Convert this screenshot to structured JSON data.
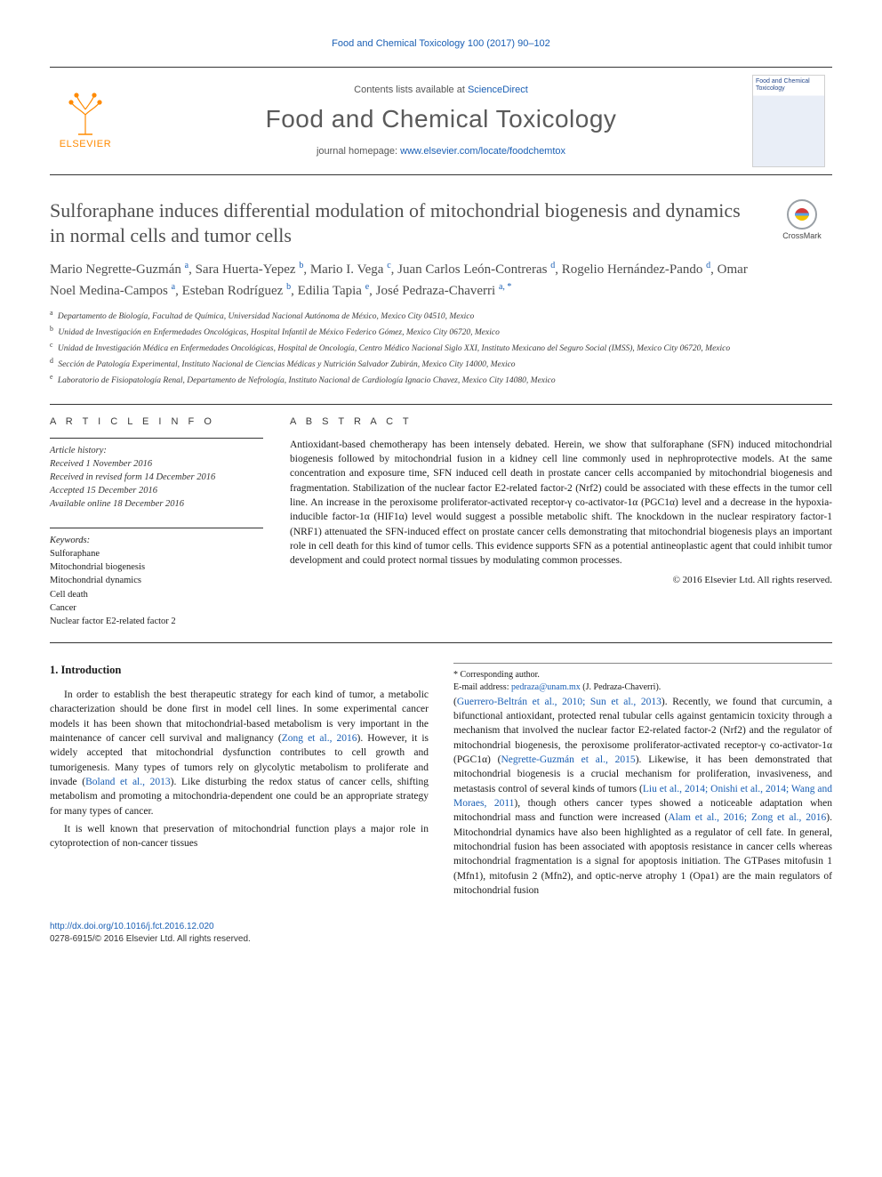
{
  "running_head": "Food and Chemical Toxicology 100 (2017) 90–102",
  "masthead": {
    "publisher": "ELSEVIER",
    "contents_prefix": "Contents lists available at ",
    "contents_link": "ScienceDirect",
    "journal_title": "Food and Chemical Toxicology",
    "homepage_prefix": "journal homepage: ",
    "homepage_url": "www.elsevier.com/locate/foodchemtox",
    "cover_caption": "Food and Chemical Toxicology"
  },
  "crossmark_label": "CrossMark",
  "article_title": "Sulforaphane induces differential modulation of mitochondrial biogenesis and dynamics in normal cells and tumor cells",
  "authors_html": "Mario Negrette-Guzmán <sup>a</sup>, Sara Huerta-Yepez <sup>b</sup>, Mario I. Vega <sup>c</sup>, Juan Carlos León-Contreras <sup>d</sup>, Rogelio Hernández-Pando <sup>d</sup>, Omar Noel Medina-Campos <sup>a</sup>, Esteban Rodríguez <sup>b</sup>, Edilia Tapia <sup>e</sup>, José Pedraza-Chaverri <sup>a, <span class=\"corr\">*</span></sup>",
  "affiliations": [
    {
      "key": "a",
      "text": "Departamento de Biología, Facultad de Química, Universidad Nacional Autónoma de México, Mexico City 04510, Mexico"
    },
    {
      "key": "b",
      "text": "Unidad de Investigación en Enfermedades Oncológicas, Hospital Infantil de México Federico Gómez, Mexico City 06720, Mexico"
    },
    {
      "key": "c",
      "text": "Unidad de Investigación Médica en Enfermedades Oncológicas, Hospital de Oncología, Centro Médico Nacional Siglo XXI, Instituto Mexicano del Seguro Social (IMSS), Mexico City 06720, Mexico"
    },
    {
      "key": "d",
      "text": "Sección de Patología Experimental, Instituto Nacional de Ciencias Médicas y Nutrición Salvador Zubirán, Mexico City 14000, Mexico"
    },
    {
      "key": "e",
      "text": "Laboratorio de Fisiopatología Renal, Departamento de Nefrología, Instituto Nacional de Cardiología Ignacio Chavez, Mexico City 14080, Mexico"
    }
  ],
  "article_info_label": "A R T I C L E  I N F O",
  "abstract_label": "A B S T R A C T",
  "history": {
    "label": "Article history:",
    "received": "Received 1 November 2016",
    "revised": "Received in revised form 14 December 2016",
    "accepted": "Accepted 15 December 2016",
    "online": "Available online 18 December 2016"
  },
  "keywords": {
    "label": "Keywords:",
    "items": [
      "Sulforaphane",
      "Mitochondrial biogenesis",
      "Mitochondrial dynamics",
      "Cell death",
      "Cancer",
      "Nuclear factor E2-related factor 2"
    ]
  },
  "abstract": "Antioxidant-based chemotherapy has been intensely debated. Herein, we show that sulforaphane (SFN) induced mitochondrial biogenesis followed by mitochondrial fusion in a kidney cell line commonly used in nephroprotective models. At the same concentration and exposure time, SFN induced cell death in prostate cancer cells accompanied by mitochondrial biogenesis and fragmentation. Stabilization of the nuclear factor E2-related factor-2 (Nrf2) could be associated with these effects in the tumor cell line. An increase in the peroxisome proliferator-activated receptor-γ co-activator-1α (PGC1α) level and a decrease in the hypoxia-inducible factor-1α (HIF1α) level would suggest a possible metabolic shift. The knockdown in the nuclear respiratory factor-1 (NRF1) attenuated the SFN-induced effect on prostate cancer cells demonstrating that mitochondrial biogenesis plays an important role in cell death for this kind of tumor cells. This evidence supports SFN as a potential antineoplastic agent that could inhibit tumor development and could protect normal tissues by modulating common processes.",
  "copyright_line": "© 2016 Elsevier Ltd. All rights reserved.",
  "intro_heading": "1. Introduction",
  "intro_p1": "In order to establish the best therapeutic strategy for each kind of tumor, a metabolic characterization should be done first in model cell lines. In some experimental cancer models it has been shown that mitochondrial-based metabolism is very important in the maintenance of cancer cell survival and malignancy (",
  "intro_p1_cite1": "Zong et al., 2016",
  "intro_p1b": "). However, it is widely accepted that mitochondrial dysfunction contributes to cell growth and tumorigenesis. Many types of tumors rely on glycolytic metabolism to proliferate and invade (",
  "intro_p1_cite2": "Boland et al., 2013",
  "intro_p1c": "). Like disturbing the redox status of cancer cells, shifting metabolism and promoting a mitochondria-dependent one could be an appropriate strategy for many types of cancer.",
  "intro_p2": "It is well known that preservation of mitochondrial function plays a major role in cytoprotection of non-cancer tissues",
  "col2_a": "(",
  "col2_cite1": "Guerrero-Beltrán et al., 2010; Sun et al., 2013",
  "col2_b": "). Recently, we found that curcumin, a bifunctional antioxidant, protected renal tubular cells against gentamicin toxicity through a mechanism that involved the nuclear factor E2-related factor-2 (Nrf2) and the regulator of mitochondrial biogenesis, the peroxisome proliferator-activated receptor-γ co-activator-1α (PGC1α) (",
  "col2_cite2": "Negrette-Guzmán et al., 2015",
  "col2_c": "). Likewise, it has been demonstrated that mitochondrial biogenesis is a crucial mechanism for proliferation, invasiveness, and metastasis control of several kinds of tumors (",
  "col2_cite3": "Liu et al., 2014; Onishi et al., 2014; Wang and Moraes, 2011",
  "col2_d": "), though others cancer types showed a noticeable adaptation when mitochondrial mass and function were increased (",
  "col2_cite4": "Alam et al., 2016; Zong et al., 2016",
  "col2_e": "). Mitochondrial dynamics have also been highlighted as a regulator of cell fate. In general, mitochondrial fusion has been associated with apoptosis resistance in cancer cells whereas mitochondrial fragmentation is a signal for apoptosis initiation. The GTPases mitofusin 1 (Mfn1), mitofusin 2 (Mfn2), and optic-nerve atrophy 1 (Opa1) are the main regulators of mitochondrial fusion",
  "corresponding": {
    "label": "* Corresponding author.",
    "email_label": "E-mail address: ",
    "email": "pedraza@unam.mx",
    "email_name": " (J. Pedraza-Chaverri)."
  },
  "footer": {
    "doi": "http://dx.doi.org/10.1016/j.fct.2016.12.020",
    "issn_line": "0278-6915/© 2016 Elsevier Ltd. All rights reserved."
  },
  "colors": {
    "link": "#1a5fb4",
    "brand_orange": "#ff8a00",
    "text": "#1a1a1a",
    "muted": "#5a5a5a"
  }
}
